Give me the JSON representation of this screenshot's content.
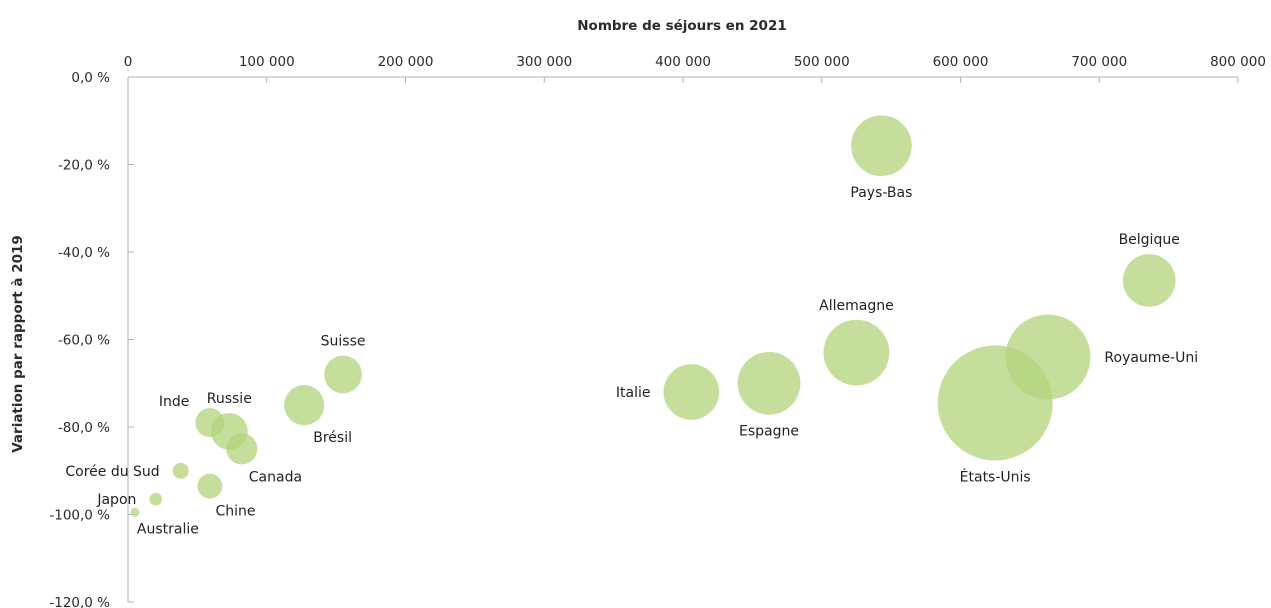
{
  "chart_data": {
    "type": "scatter",
    "subtype": "bubble",
    "xlabel": "Nombre de séjours en 2021",
    "ylabel": "Variation par rapport à 2019",
    "x_axis_position": "top",
    "xlim": [
      0,
      800000
    ],
    "ylim": [
      -120,
      0
    ],
    "x_ticks": [
      0,
      100000,
      200000,
      300000,
      400000,
      500000,
      600000,
      700000,
      800000
    ],
    "x_tick_labels": [
      "0",
      "100 000",
      "200 000",
      "300 000",
      "400 000",
      "500 000",
      "600 000",
      "700 000",
      "800 000"
    ],
    "y_ticks": [
      0,
      -20,
      -40,
      -60,
      -80,
      -100,
      -120
    ],
    "y_tick_labels": [
      "0,0 %",
      "-20,0 %",
      "-40,0 %",
      "-60,0 %",
      "-80,0 %",
      "-100,0 %",
      "-120,0 %"
    ],
    "grid": false,
    "bubble_color": "#b5d57f",
    "points": [
      {
        "name": "Pays-Bas",
        "x": 543000,
        "y": -15.7,
        "size": 5.7,
        "label_pos": "below"
      },
      {
        "name": "Belgique",
        "x": 736000,
        "y": -46.5,
        "size": 4.3,
        "label_pos": "above"
      },
      {
        "name": "Allemagne",
        "x": 525000,
        "y": -63.0,
        "size": 6.7,
        "label_pos": "above"
      },
      {
        "name": "Royaume-Uni",
        "x": 663000,
        "y": -64.0,
        "size": 11.2,
        "label_pos": "right"
      },
      {
        "name": "États-Unis",
        "x": 625000,
        "y": -74.5,
        "size": 20.5,
        "label_pos": "below"
      },
      {
        "name": "Espagne",
        "x": 462000,
        "y": -70.0,
        "size": 6.1,
        "label_pos": "below"
      },
      {
        "name": "Italie",
        "x": 406000,
        "y": -72.0,
        "size": 4.8,
        "label_pos": "left"
      },
      {
        "name": "Suisse",
        "x": 155000,
        "y": -68.0,
        "size": 2.2,
        "label_pos": "above"
      },
      {
        "name": "Brésil",
        "x": 127000,
        "y": -75.0,
        "size": 2.5,
        "label_pos": "below-right"
      },
      {
        "name": "Russie",
        "x": 73000,
        "y": -81.0,
        "size": 2.1,
        "label_pos": "above"
      },
      {
        "name": "Inde",
        "x": 59000,
        "y": -79.0,
        "size": 1.3,
        "label_pos": "above-left"
      },
      {
        "name": "Canada",
        "x": 82000,
        "y": -85.0,
        "size": 1.5,
        "label_pos": "below-right"
      },
      {
        "name": "Chine",
        "x": 59000,
        "y": -93.5,
        "size": 0.96,
        "label_pos": "below-right"
      },
      {
        "name": "Corée du Sud",
        "x": 38000,
        "y": -90.0,
        "size": 0.4,
        "label_pos": "left"
      },
      {
        "name": "Japon",
        "x": 20000,
        "y": -96.5,
        "size": 0.25,
        "label_pos": "left"
      },
      {
        "name": "Australie",
        "x": 5000,
        "y": -99.5,
        "size": 0.12,
        "label_pos": "below-right"
      }
    ]
  }
}
